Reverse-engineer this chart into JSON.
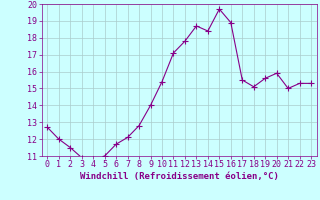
{
  "x": [
    0,
    1,
    2,
    3,
    4,
    5,
    6,
    7,
    8,
    9,
    10,
    11,
    12,
    13,
    14,
    15,
    16,
    17,
    18,
    19,
    20,
    21,
    22,
    23
  ],
  "y": [
    12.7,
    12.0,
    11.5,
    10.9,
    10.8,
    11.0,
    11.7,
    12.1,
    12.8,
    14.0,
    15.4,
    17.1,
    17.8,
    18.7,
    18.4,
    19.7,
    18.9,
    15.5,
    15.1,
    15.6,
    15.9,
    15.0,
    15.3,
    15.3
  ],
  "line_color": "#880088",
  "marker": "P",
  "marker_size": 2.5,
  "bg_color": "#ccffff",
  "grid_color": "#aacccc",
  "xlabel": "Windchill (Refroidissement éolien,°C)",
  "ylim": [
    11,
    20
  ],
  "xlim": [
    -0.5,
    23.5
  ],
  "yticks": [
    11,
    12,
    13,
    14,
    15,
    16,
    17,
    18,
    19,
    20
  ],
  "xticks": [
    0,
    1,
    2,
    3,
    4,
    5,
    6,
    7,
    8,
    9,
    10,
    11,
    12,
    13,
    14,
    15,
    16,
    17,
    18,
    19,
    20,
    21,
    22,
    23
  ],
  "tick_color": "#880088",
  "label_fontsize": 6.5,
  "tick_fontsize": 6.0
}
